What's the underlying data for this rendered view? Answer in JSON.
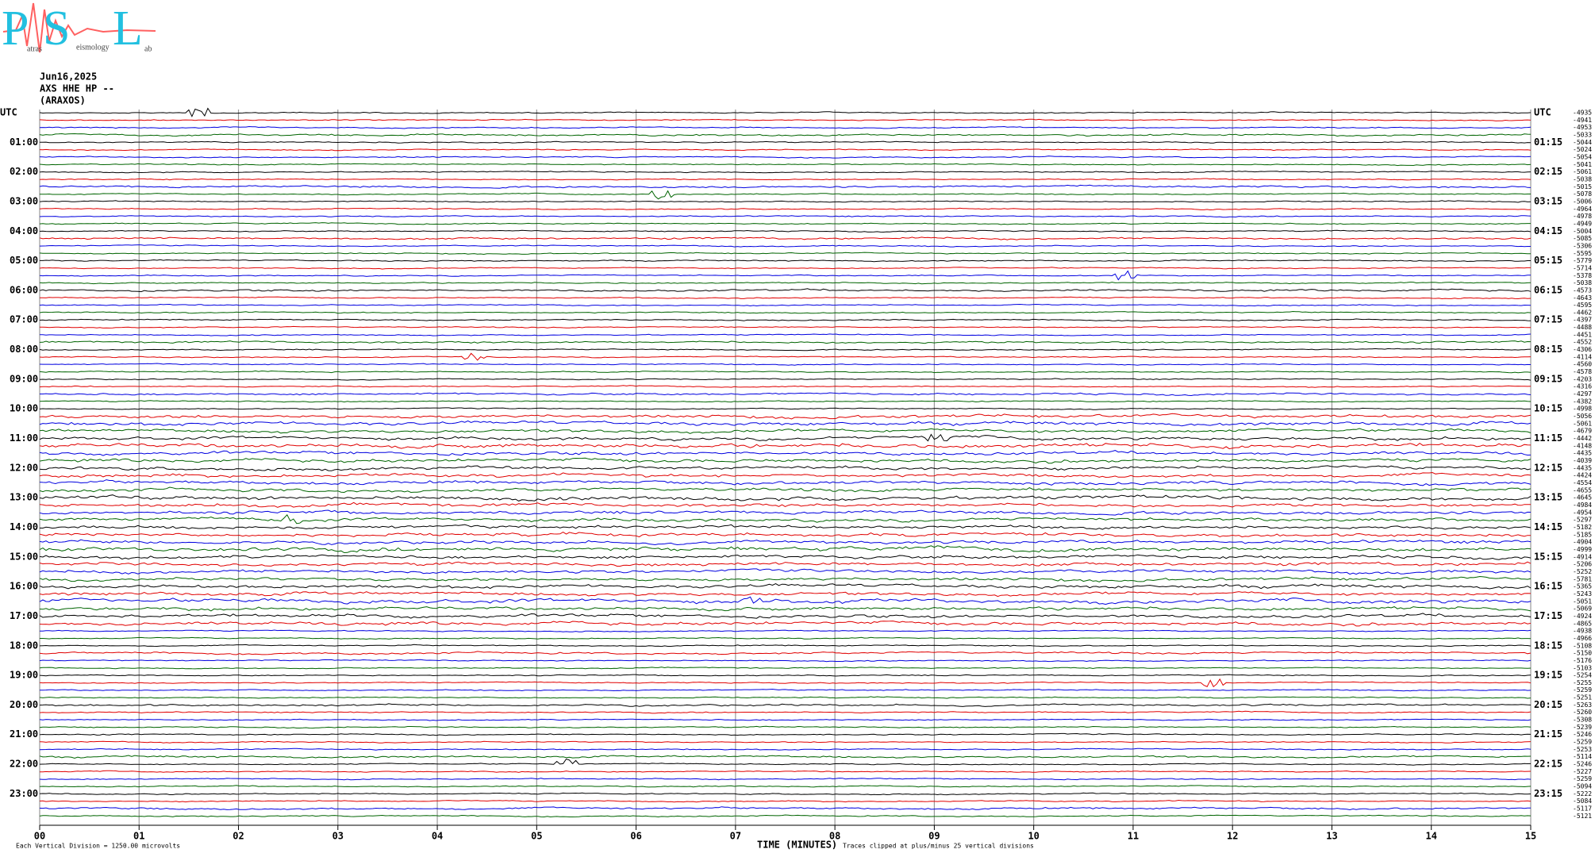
{
  "chart_data": {
    "type": "helicorder",
    "logo": {
      "letters": [
        "P",
        "S",
        "L"
      ],
      "words": [
        "atras",
        "eismology",
        "ab"
      ]
    },
    "title_lines": [
      "Jun16,2025",
      "AXS HHE HP --",
      "(ARAXOS)"
    ],
    "left_labels": [
      "UTC",
      "01:00",
      "02:00",
      "03:00",
      "04:00",
      "05:00",
      "06:00",
      "07:00",
      "08:00",
      "09:00",
      "10:00",
      "11:00",
      "12:00",
      "13:00",
      "14:00",
      "15:00",
      "16:00",
      "17:00",
      "18:00",
      "19:00",
      "20:00",
      "21:00",
      "22:00",
      "23:00"
    ],
    "right_labels": [
      "UTC",
      "01:15",
      "02:15",
      "03:15",
      "04:15",
      "05:15",
      "06:15",
      "07:15",
      "08:15",
      "09:15",
      "10:15",
      "11:15",
      "12:15",
      "13:15",
      "14:15",
      "15:15",
      "16:15",
      "17:15",
      "18:15",
      "19:15",
      "20:15",
      "21:15",
      "22:15",
      "23:15"
    ],
    "trace_offsets": [
      -4935,
      -4941,
      -4953,
      -5033,
      -5044,
      -5024,
      -5054,
      -5041,
      -5061,
      -5038,
      -5015,
      -5078,
      -5006,
      -4964,
      -4978,
      -4949,
      -5004,
      -5085,
      -5306,
      -5595,
      -5779,
      -5714,
      -5378,
      -5038,
      -4573,
      -4643,
      -4595,
      -4462,
      -4397,
      -4488,
      -4451,
      -4552,
      -4306,
      -4114,
      -4560,
      -4578,
      -4203,
      -4316,
      -4297,
      -4382,
      -4998,
      -5056,
      -5061,
      -4679,
      -4442,
      -4148,
      -4435,
      -4039,
      -4435,
      -4424,
      -4554,
      -4655,
      -4645,
      -4984,
      -4954,
      -5297,
      -5182,
      -5185,
      -4904,
      -4999,
      -4914,
      -5206,
      -5252,
      -5781,
      -5365,
      -5243,
      -5051,
      -5069,
      -4924,
      -4865,
      -4938,
      -4966,
      -5108,
      -5150,
      -5176,
      -5103,
      -5254,
      -5255,
      -5259,
      -5251,
      -5263,
      -5260,
      -5308,
      -5239,
      -5246,
      -5259,
      -5253,
      -5114,
      -5246,
      -5227,
      -5259,
      -5094,
      -5222,
      -5084,
      -5117,
      -5121
    ],
    "trace_colors": [
      "#000000",
      "#e00000",
      "#0000e0",
      "#006400"
    ],
    "x_label": "TIME (MINUTES)",
    "xlim": [
      0,
      15
    ],
    "xticks": [
      {
        "value": 0,
        "label": "00"
      },
      {
        "value": 1,
        "label": "01"
      },
      {
        "value": 2,
        "label": "02"
      },
      {
        "value": 3,
        "label": "03"
      },
      {
        "value": 4,
        "label": "04"
      },
      {
        "value": 5,
        "label": "05"
      },
      {
        "value": 6,
        "label": "06"
      },
      {
        "value": 7,
        "label": "07"
      },
      {
        "value": 8,
        "label": "08"
      },
      {
        "value": 9,
        "label": "09"
      },
      {
        "value": 10,
        "label": "10"
      },
      {
        "value": 11,
        "label": "11"
      },
      {
        "value": 12,
        "label": "12"
      },
      {
        "value": 13,
        "label": "13"
      },
      {
        "value": 14,
        "label": "14"
      },
      {
        "value": 15,
        "label": "15"
      }
    ],
    "grid": true,
    "footer_left": "Each Vertical Division = 1250.00 microvolts",
    "footer_right": "Traces clipped at plus/minus 25 vertical divisions"
  }
}
